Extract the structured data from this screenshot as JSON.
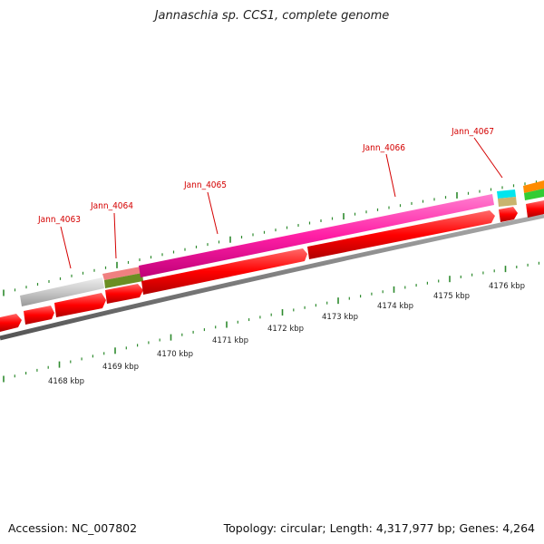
{
  "title": "Jannaschia sp. CCS1, complete genome",
  "footer": {
    "accession": "Accession: NC_007802",
    "topology": "Topology: circular; Length: 4,317,977 bp; Genes: 4,264"
  },
  "colors": {
    "forward_cds": "#ff0000",
    "magenta_feature": "#ff1fa5",
    "grey_feature": "#c8c8c8",
    "backbone": "#808080",
    "tick": "#2e8b2e",
    "label": "#d40000"
  },
  "gene_labels": [
    "Jann_4063",
    "Jann_4064",
    "Jann_4065",
    "Jann_4066",
    "Jann_4067"
  ],
  "kbp_labels": [
    "4168 kbp",
    "4169 kbp",
    "4170 kbp",
    "4171 kbp",
    "4172 kbp",
    "4173 kbp",
    "4174 kbp",
    "4175 kbp",
    "4176 kbp"
  ]
}
